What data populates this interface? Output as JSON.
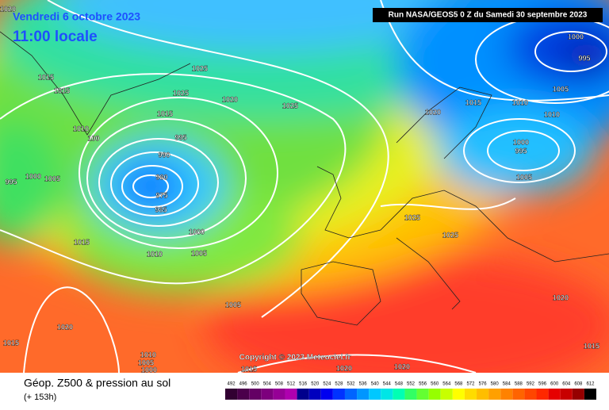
{
  "header": {
    "date": "Vendredi 6 octobre 2023",
    "time": "11:00 locale",
    "run": "Run NASA/GEOS5 0 Z du Samedi 30 septembre 2023",
    "copyright": "Copyright © 2023 Meteociel.fr"
  },
  "footer": {
    "title": "Géop. Z500 & pression au sol",
    "lead": "(+ 153h)"
  },
  "isobar_labels": [
    "1020",
    "1015",
    "1015",
    "1025",
    "1025",
    "1020",
    "1015",
    "1025",
    "1010",
    "100",
    "995",
    "990",
    "995",
    "1000",
    "1005",
    "980",
    "975",
    "985",
    "1000",
    "1015",
    "1010",
    "1005",
    "1005",
    "1020",
    "1015",
    "1010",
    "1005",
    "1000",
    "1015",
    "1020",
    "1020",
    "1025",
    "1025",
    "1020",
    "1015",
    "1010",
    "1010",
    "1000",
    "995",
    "1005",
    "1000",
    "995",
    "1005",
    "1020",
    "1015"
  ],
  "legend": {
    "values": [
      492,
      496,
      500,
      504,
      508,
      512,
      516,
      520,
      524,
      528,
      532,
      536,
      540,
      544,
      548,
      552,
      556,
      560,
      564,
      568,
      572,
      576,
      580,
      584,
      588,
      592,
      596,
      600,
      604,
      608,
      612
    ],
    "colors": [
      "#320032",
      "#4b004b",
      "#640064",
      "#7d007d",
      "#960096",
      "#af00af",
      "#00008c",
      "#0000be",
      "#0000f0",
      "#0032ff",
      "#0064ff",
      "#0096ff",
      "#00c8ff",
      "#00e6e6",
      "#00ffb4",
      "#32ff64",
      "#64ff32",
      "#96ff00",
      "#c8ff00",
      "#ffff00",
      "#ffdc00",
      "#ffbe00",
      "#ffa000",
      "#ff8200",
      "#ff6400",
      "#ff4600",
      "#ff2800",
      "#e60000",
      "#c80000",
      "#960000",
      "#000000"
    ]
  }
}
